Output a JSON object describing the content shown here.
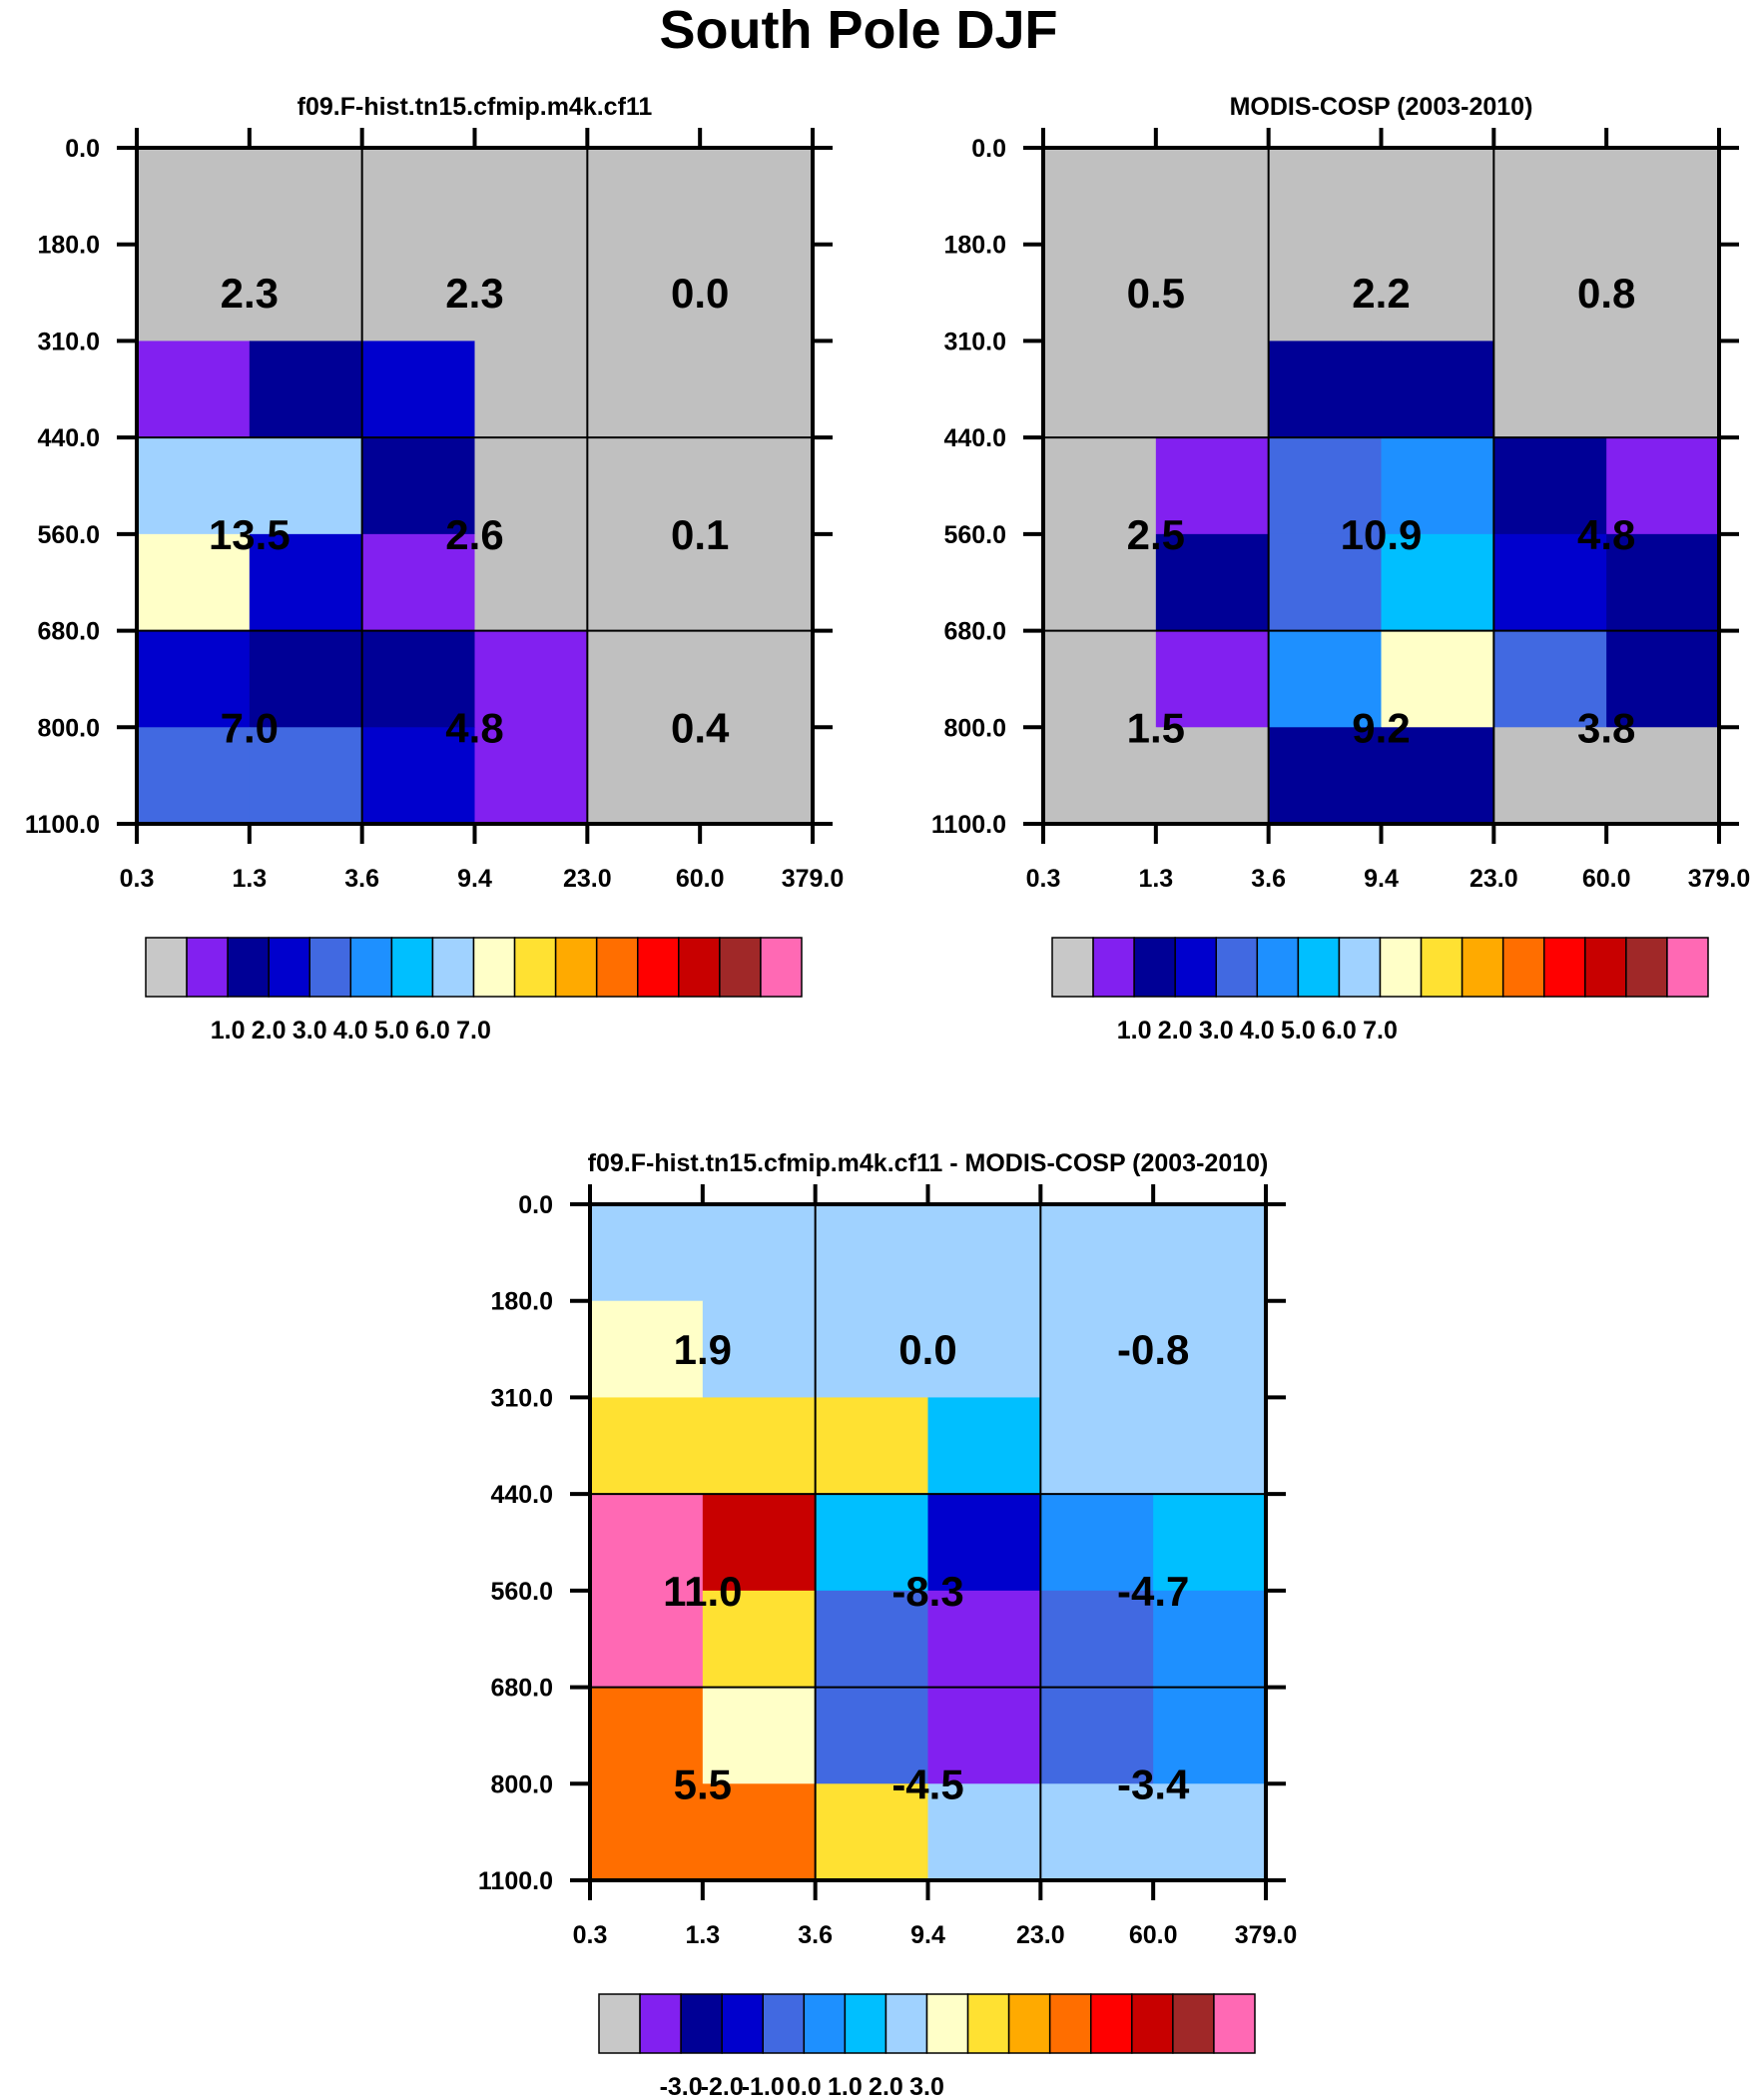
{
  "title": "South Pole DJF",
  "palette": [
    "#c0c0c0",
    "#8220f0",
    "#000096",
    "#0000cd",
    "#4169e1",
    "#1e90ff",
    "#00bfff",
    "#a0d2ff",
    "#ffffc8",
    "#ffe132",
    "#ffaa00",
    "#ff6e00",
    "#ff0000",
    "#c80000",
    "#a02828",
    "#ff69b4"
  ],
  "chart_data": [
    {
      "type": "heatmap",
      "title": "f09.F-hist.tn15.cfmip.m4k.cf11",
      "x_ticks": [
        "0.3",
        "1.3",
        "3.6",
        "9.4",
        "23.0",
        "60.0",
        "379.0"
      ],
      "y_ticks": [
        "0.0",
        "180.0",
        "310.0",
        "440.0",
        "560.0",
        "680.0",
        "800.0",
        "1100.0"
      ],
      "cell_color_index": [
        [
          0,
          0,
          0,
          0,
          0,
          0
        ],
        [
          0,
          0,
          0,
          0,
          0,
          0
        ],
        [
          1,
          2,
          3,
          0,
          0,
          0
        ],
        [
          7,
          7,
          2,
          0,
          0,
          0
        ],
        [
          8,
          3,
          1,
          0,
          0,
          0
        ],
        [
          3,
          2,
          2,
          1,
          0,
          0
        ],
        [
          4,
          4,
          3,
          1,
          0,
          0
        ]
      ],
      "block_values": [
        [
          "2.3",
          "2.3",
          "0.0"
        ],
        [
          "13.5",
          "2.6",
          "0.1"
        ],
        [
          "7.0",
          "4.8",
          "0.4"
        ]
      ],
      "colorbar_labels": [
        "1.0",
        "2.0",
        "3.0",
        "4.0",
        "5.0",
        "6.0",
        "7.0"
      ]
    },
    {
      "type": "heatmap",
      "title": "MODIS-COSP (2003-2010)",
      "x_ticks": [
        "0.3",
        "1.3",
        "3.6",
        "9.4",
        "23.0",
        "60.0",
        "379.0"
      ],
      "y_ticks": [
        "0.0",
        "180.0",
        "310.0",
        "440.0",
        "560.0",
        "680.0",
        "800.0",
        "1100.0"
      ],
      "cell_color_index": [
        [
          0,
          0,
          0,
          0,
          0,
          0
        ],
        [
          0,
          0,
          0,
          0,
          0,
          0
        ],
        [
          0,
          0,
          2,
          2,
          0,
          0
        ],
        [
          0,
          1,
          4,
          5,
          2,
          1
        ],
        [
          0,
          2,
          4,
          6,
          3,
          2
        ],
        [
          0,
          1,
          5,
          8,
          4,
          2
        ],
        [
          0,
          0,
          2,
          2,
          0,
          0
        ]
      ],
      "block_values": [
        [
          "0.5",
          "2.2",
          "0.8"
        ],
        [
          "2.5",
          "10.9",
          "4.8"
        ],
        [
          "1.5",
          "9.2",
          "3.8"
        ]
      ],
      "colorbar_labels": [
        "1.0",
        "2.0",
        "3.0",
        "4.0",
        "5.0",
        "6.0",
        "7.0"
      ]
    },
    {
      "type": "heatmap",
      "title": "f09.F-hist.tn15.cfmip.m4k.cf11 - MODIS-COSP (2003-2010)",
      "x_ticks": [
        "0.3",
        "1.3",
        "3.6",
        "9.4",
        "23.0",
        "60.0",
        "379.0"
      ],
      "y_ticks": [
        "0.0",
        "180.0",
        "310.0",
        "440.0",
        "560.0",
        "680.0",
        "800.0",
        "1100.0"
      ],
      "cell_color_index": [
        [
          7,
          7,
          7,
          7,
          7,
          7
        ],
        [
          8,
          7,
          7,
          7,
          7,
          7
        ],
        [
          9,
          9,
          9,
          6,
          7,
          7
        ],
        [
          15,
          13,
          6,
          3,
          5,
          6
        ],
        [
          15,
          9,
          4,
          1,
          4,
          5
        ],
        [
          11,
          8,
          4,
          1,
          4,
          5
        ],
        [
          11,
          11,
          9,
          7,
          7,
          7
        ]
      ],
      "block_values": [
        [
          "1.9",
          "0.0",
          "-0.8"
        ],
        [
          "11.0",
          "-8.3",
          "-4.7"
        ],
        [
          "5.5",
          "-4.5",
          "-3.4"
        ]
      ],
      "colorbar_labels": [
        "-3.0",
        "-2.0",
        "-1.0",
        "0.0",
        "1.0",
        "2.0",
        "3.0"
      ]
    }
  ]
}
